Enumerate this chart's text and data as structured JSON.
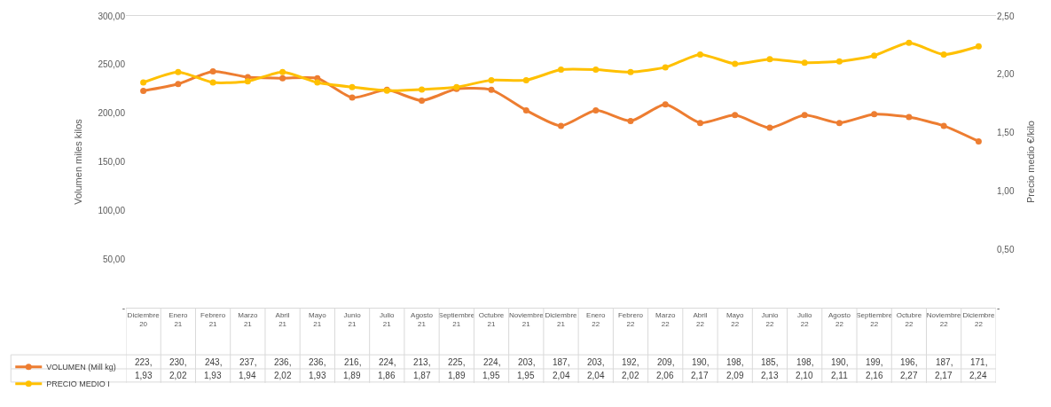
{
  "chart_data": {
    "type": "line",
    "categories": [
      "Diciembre 20",
      "Enero 21",
      "Febrero 21",
      "Marzo 21",
      "Abril 21",
      "Mayo 21",
      "Junio 21",
      "Julio 21",
      "Agosto 21",
      "Septiembre 21",
      "Octubre 21",
      "Noviembre 21",
      "Diciembre 21",
      "Enero 22",
      "Febrero 22",
      "Marzo 22",
      "Abril 22",
      "Mayo 22",
      "Junio 22",
      "Julio 22",
      "Agosto 22",
      "Septiembre 22",
      "Octubre 22",
      "Noviembre 22",
      "Diciembre 22"
    ],
    "series": [
      {
        "name": "VOLUMEN (Mill kg)",
        "color": "#ed7d31",
        "values": [
          223,
          230,
          243,
          237,
          236,
          236,
          216,
          224,
          213,
          225,
          224,
          203,
          187,
          203,
          192,
          209,
          190,
          198,
          185,
          198,
          190,
          199,
          196,
          187,
          171
        ],
        "value_labels": [
          "223,",
          "230,",
          "243,",
          "237,",
          "236,",
          "236,",
          "216,",
          "224,",
          "213,",
          "225,",
          "224,",
          "203,",
          "187,",
          "203,",
          "192,",
          "209,",
          "190,",
          "198,",
          "185,",
          "198,",
          "190,",
          "199,",
          "196,",
          "187,",
          "171,"
        ]
      },
      {
        "name": "PRECIO MEDIO I",
        "color": "#ffc000",
        "axis": "y2",
        "values": [
          1.93,
          2.02,
          1.93,
          1.94,
          2.02,
          1.93,
          1.89,
          1.86,
          1.87,
          1.89,
          1.95,
          1.95,
          2.04,
          2.04,
          2.02,
          2.06,
          2.17,
          2.09,
          2.13,
          2.1,
          2.11,
          2.16,
          2.27,
          2.17,
          2.24
        ],
        "value_labels": [
          "1,93",
          "2,02",
          "1,93",
          "1,94",
          "2,02",
          "1,93",
          "1,89",
          "1,86",
          "1,87",
          "1,89",
          "1,95",
          "1,95",
          "2,04",
          "2,04",
          "2,02",
          "2,06",
          "2,17",
          "2,09",
          "2,13",
          "2,10",
          "2,11",
          "2,16",
          "2,27",
          "2,17",
          "2,24"
        ]
      }
    ],
    "ylabel": "Volumen miles kilos",
    "y2label": "Precio medio €/kilo",
    "ylim": [
      0,
      300
    ],
    "yticks": [
      {
        "value": 0,
        "label": "-"
      },
      {
        "value": 50,
        "label": "50,00"
      },
      {
        "value": 100,
        "label": "100,00"
      },
      {
        "value": 150,
        "label": "150,00"
      },
      {
        "value": 200,
        "label": "200,00"
      },
      {
        "value": 250,
        "label": "250,00"
      },
      {
        "value": 300,
        "label": "300,00"
      }
    ],
    "y2lim": [
      0,
      2.5
    ],
    "y2ticks": [
      {
        "value": 0,
        "label": "-"
      },
      {
        "value": 0.5,
        "label": "0,50"
      },
      {
        "value": 1,
        "label": "1,00"
      },
      {
        "value": 1.5,
        "label": "1,50"
      },
      {
        "value": 2,
        "label": "2,00"
      },
      {
        "value": 2.5,
        "label": "2,50"
      }
    ],
    "marker": "circle",
    "line_style": "solid",
    "legend": "bottom left"
  }
}
